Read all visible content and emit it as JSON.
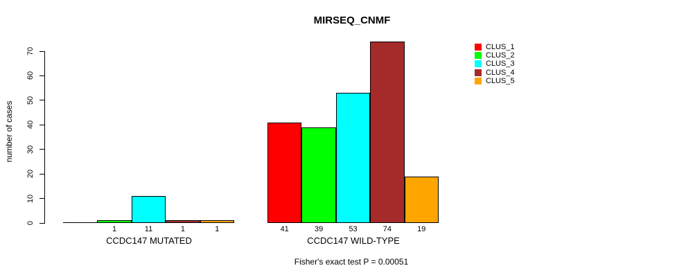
{
  "title": "MIRSEQ_CNMF",
  "subtitle": "Fisher's exact test P = 0.00051",
  "y_axis": {
    "label": "number of cases",
    "ticks": [
      0,
      10,
      20,
      30,
      40,
      50,
      60,
      70
    ]
  },
  "legend": {
    "position": "right",
    "items": [
      {
        "label": "CLUS_1",
        "color": "#FF0000"
      },
      {
        "label": "CLUS_2",
        "color": "#00FF00"
      },
      {
        "label": "CLUS_3",
        "color": "#00FFFF"
      },
      {
        "label": "CLUS_4",
        "color": "#A52A2A"
      },
      {
        "label": "CLUS_5",
        "color": "#FFA500"
      }
    ]
  },
  "chart_data": {
    "type": "bar",
    "title": "MIRSEQ_CNMF",
    "xlabel": "",
    "ylabel": "number of cases",
    "ylim": [
      0,
      70
    ],
    "grid": false,
    "legend_position": "right",
    "categories": [
      "CCDC147 MUTATED",
      "CCDC147 WILD-TYPE"
    ],
    "series": [
      {
        "name": "CLUS_1",
        "color": "#FF0000",
        "values": [
          0,
          41
        ]
      },
      {
        "name": "CLUS_2",
        "color": "#00FF00",
        "values": [
          1,
          39
        ]
      },
      {
        "name": "CLUS_3",
        "color": "#00FFFF",
        "values": [
          11,
          53
        ]
      },
      {
        "name": "CLUS_4",
        "color": "#A52A2A",
        "values": [
          1,
          74
        ]
      },
      {
        "name": "CLUS_5",
        "color": "#FFA500",
        "values": [
          1,
          19
        ]
      }
    ],
    "bar_value_labels_shown": true,
    "zero_value_labels_hidden": true,
    "annotation": "Fisher's exact test P = 0.00051"
  }
}
